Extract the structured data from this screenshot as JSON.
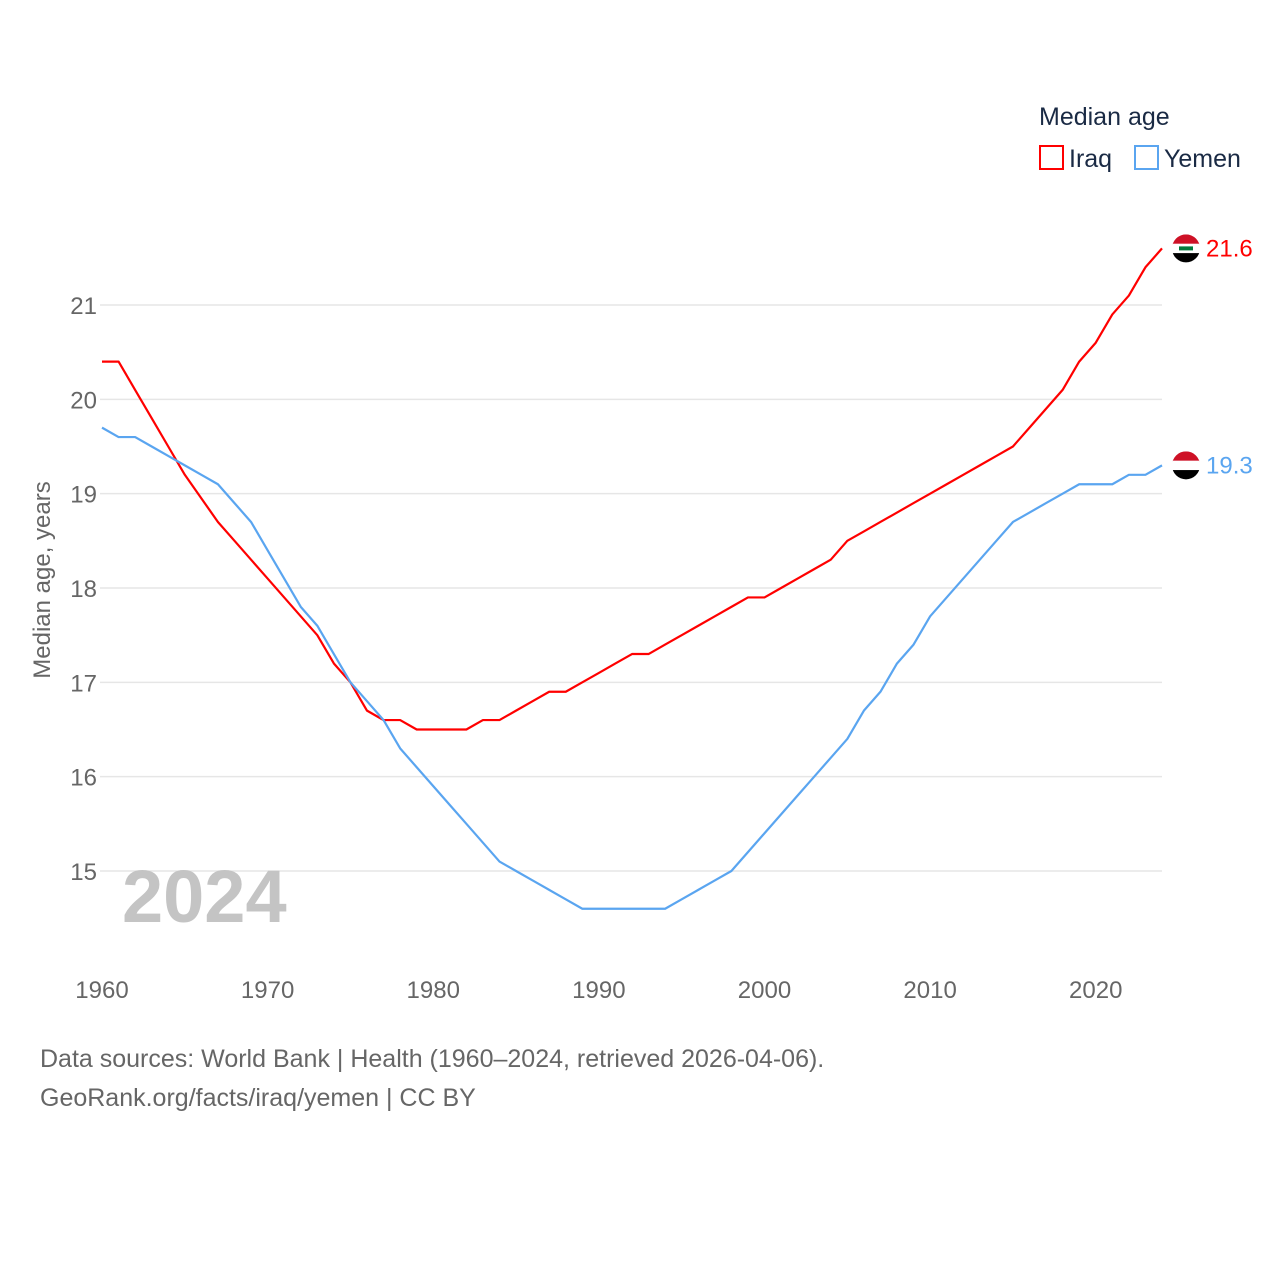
{
  "chart_data": {
    "type": "line",
    "title": "Median age",
    "ylabel": "Median age, years",
    "xlabel": "",
    "year_watermark": "2024",
    "xlim": [
      1960,
      2024
    ],
    "ylim": [
      14.2,
      21.8
    ],
    "x_ticks": [
      1960,
      1970,
      1980,
      1990,
      2000,
      2010,
      2020
    ],
    "y_ticks": [
      15,
      16,
      17,
      18,
      19,
      20,
      21
    ],
    "grid": true,
    "legend_position": "top-right",
    "x": [
      1960,
      1961,
      1962,
      1963,
      1964,
      1965,
      1966,
      1967,
      1968,
      1969,
      1970,
      1971,
      1972,
      1973,
      1974,
      1975,
      1976,
      1977,
      1978,
      1979,
      1980,
      1981,
      1982,
      1983,
      1984,
      1985,
      1986,
      1987,
      1988,
      1989,
      1990,
      1991,
      1992,
      1993,
      1994,
      1995,
      1996,
      1997,
      1998,
      1999,
      2000,
      2001,
      2002,
      2003,
      2004,
      2005,
      2006,
      2007,
      2008,
      2009,
      2010,
      2011,
      2012,
      2013,
      2014,
      2015,
      2016,
      2017,
      2018,
      2019,
      2020,
      2021,
      2022,
      2023,
      2024
    ],
    "series": [
      {
        "name": "Iraq",
        "color": "#ff0000",
        "end_label": "21.6",
        "values": [
          20.4,
          20.4,
          20.1,
          19.8,
          19.5,
          19.2,
          18.95,
          18.7,
          18.5,
          18.3,
          18.1,
          17.9,
          17.7,
          17.5,
          17.2,
          17.0,
          16.7,
          16.6,
          16.6,
          16.5,
          16.5,
          16.5,
          16.5,
          16.6,
          16.6,
          16.7,
          16.8,
          16.9,
          16.9,
          17.0,
          17.1,
          17.2,
          17.3,
          17.3,
          17.4,
          17.5,
          17.6,
          17.7,
          17.8,
          17.9,
          17.9,
          18.0,
          18.1,
          18.2,
          18.3,
          18.5,
          18.6,
          18.7,
          18.8,
          18.9,
          19.0,
          19.1,
          19.2,
          19.3,
          19.4,
          19.5,
          19.7,
          19.9,
          20.1,
          20.4,
          20.6,
          20.9,
          21.1,
          21.4,
          21.6
        ]
      },
      {
        "name": "Yemen",
        "color": "#5aa5f0",
        "end_label": "19.3",
        "values": [
          19.7,
          19.6,
          19.6,
          19.5,
          19.4,
          19.3,
          19.2,
          19.1,
          18.9,
          18.7,
          18.4,
          18.1,
          17.8,
          17.6,
          17.3,
          17.0,
          16.8,
          16.6,
          16.3,
          16.1,
          15.9,
          15.7,
          15.5,
          15.3,
          15.1,
          15.0,
          14.9,
          14.8,
          14.7,
          14.6,
          14.6,
          14.6,
          14.6,
          14.6,
          14.6,
          14.7,
          14.8,
          14.9,
          15.0,
          15.2,
          15.4,
          15.6,
          15.8,
          16.0,
          16.2,
          16.4,
          16.7,
          16.9,
          17.2,
          17.4,
          17.7,
          17.9,
          18.1,
          18.3,
          18.5,
          18.7,
          18.8,
          18.9,
          19.0,
          19.1,
          19.1,
          19.1,
          19.2,
          19.2,
          19.3
        ]
      }
    ]
  },
  "footer": {
    "line1": "Data sources: World Bank | Health (1960–2024, retrieved 2026-04-06).",
    "line2": "GeoRank.org/facts/iraq/yemen | CC BY"
  }
}
